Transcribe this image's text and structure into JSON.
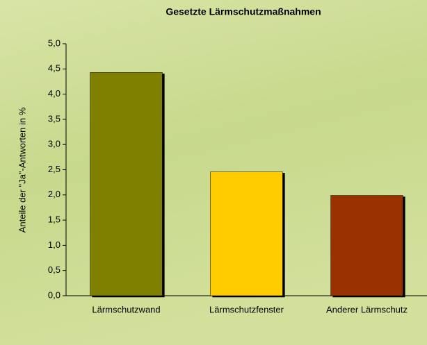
{
  "chart_data": {
    "type": "bar",
    "title": "Gesetzte Lärmschutzmaßnahmen",
    "y_label": "Anteile der \"Ja\"-Antworten in %",
    "categories": [
      "Lärmschutzwand",
      "Lärmschutzfenster",
      "Anderer Lärmschutz"
    ],
    "values": [
      4.43,
      2.46,
      1.99
    ],
    "colors": [
      "#808000",
      "#ffcc00",
      "#993300"
    ],
    "ylim": [
      0,
      5
    ],
    "yticks": [
      {
        "value": 0,
        "label": "0,0"
      },
      {
        "value": 0.5,
        "label": "0,5"
      },
      {
        "value": 1,
        "label": "1,0"
      },
      {
        "value": 1.5,
        "label": "1,5"
      },
      {
        "value": 2,
        "label": "2,0"
      },
      {
        "value": 2.5,
        "label": "2,5"
      },
      {
        "value": 3,
        "label": "3,0"
      },
      {
        "value": 3.5,
        "label": "3,5"
      },
      {
        "value": 4,
        "label": "4,0"
      },
      {
        "value": 4.5,
        "label": "4,5"
      },
      {
        "value": 5,
        "label": "5,0"
      }
    ]
  }
}
